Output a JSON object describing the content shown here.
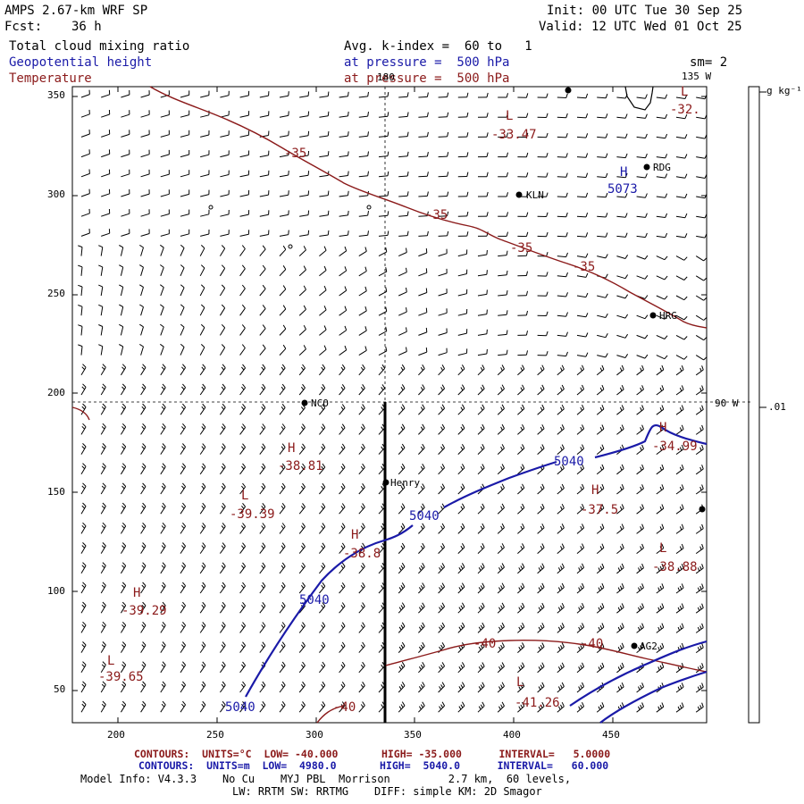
{
  "header": {
    "model": "AMPS 2.67-km WRF SP",
    "fcst_label": "Fcst:",
    "fcst_value": "36 h",
    "init": "Init: 00 UTC Tue 30 Sep 25",
    "valid": "Valid: 12 UTC Wed 01 Oct 25",
    "field1": "Total cloud mixing ratio",
    "field1_level": "Avg. k-index =  60 to   1",
    "field2": "Geopotential height",
    "field2_level": "at pressure =  500 hPa",
    "field3": "Temperature",
    "field3_level": "at pressure =  500 hPa",
    "smoothing": "sm= 2"
  },
  "axes": {
    "x_ticks": [
      "200",
      "250",
      "300",
      "350",
      "400",
      "450"
    ],
    "y_ticks": [
      "350",
      "300",
      "250",
      "200",
      "150",
      "100",
      "50"
    ],
    "meridian_180": "180",
    "meridian_135w": "135 W",
    "meridian_90w": "90 W"
  },
  "colorbar": {
    "units": "g kg⁻¹",
    "value": ".01"
  },
  "stations": [
    {
      "name": "KLN",
      "label": "KLN"
    },
    {
      "name": "RDG",
      "label": "RDG"
    },
    {
      "name": "HRG",
      "label": "HRG"
    },
    {
      "name": "NCO",
      "label": "NCO"
    },
    {
      "name": "Henry",
      "label": "Henry"
    },
    {
      "name": "AG2",
      "label": "AG2"
    }
  ],
  "temperature_labels": [
    "-35",
    "-35",
    "-35",
    "-35",
    "-40",
    "-40",
    "-40"
  ],
  "height_labels": [
    "5040",
    "5040",
    "5040",
    "5040"
  ],
  "extrema": [
    {
      "letter": "L",
      "value": "-33.47",
      "color": "red"
    },
    {
      "letter": "L",
      "value": "-32.",
      "color": "red"
    },
    {
      "letter": "H",
      "value": "5073",
      "color": "blue"
    },
    {
      "letter": "H",
      "value": "-38.81",
      "color": "red"
    },
    {
      "letter": "L",
      "value": "-39.39",
      "color": "red"
    },
    {
      "letter": "H",
      "value": "-38.8",
      "color": "red"
    },
    {
      "letter": "H",
      "value": "-39.29",
      "color": "red"
    },
    {
      "letter": "L",
      "value": "-39.65",
      "color": "red"
    },
    {
      "letter": "H",
      "value": "-37.5",
      "color": "red"
    },
    {
      "letter": "L",
      "value": "-38.88",
      "color": "red"
    },
    {
      "letter": "H",
      "value": "-34.99",
      "color": "red"
    },
    {
      "letter": "L",
      "value": "-41.26",
      "color": "red"
    }
  ],
  "footer": {
    "temp_contours": "CONTOURS:  UNITS=°C  LOW= -40.000       HIGH= -35.000      INTERVAL=   5.0000",
    "height_contours": "CONTOURS:  UNITS=m  LOW=  4980.0       HIGH=  5040.0      INTERVAL=   60.000",
    "model_info": "Model Info: V4.3.3    No Cu    MYJ PBL  Morrison         2.7 km,  60 levels,",
    "physics": "LW: RRTM SW: RRTMG    DIFF: simple KM: 2D Smagor"
  },
  "colors": {
    "temperature": "#8b1a1a",
    "height": "#1a1aa8",
    "text": "#000000"
  }
}
